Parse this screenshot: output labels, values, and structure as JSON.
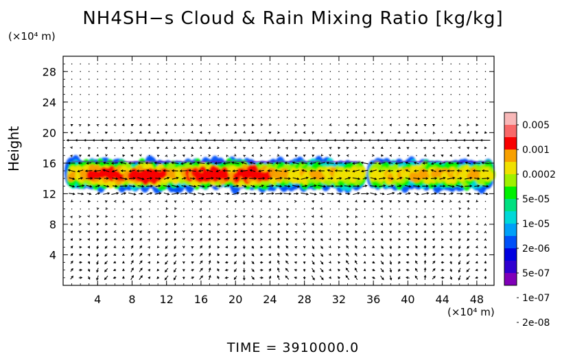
{
  "chart_data": {
    "type": "heatmap",
    "title": "NH4SH−s Cloud & Rain Mixing Ratio [kg/kg]",
    "ylabel": "Height",
    "y_unit_label": "(×10⁴ m)",
    "x_unit_label": "(×10⁴ m)",
    "footer": "TIME  =  3910000.0",
    "xlim": [
      0,
      50
    ],
    "ylim": [
      0,
      30
    ],
    "x_ticks": [
      4,
      8,
      12,
      16,
      20,
      24,
      28,
      32,
      36,
      40,
      44,
      48
    ],
    "y_ticks": [
      4,
      8,
      12,
      16,
      20,
      24,
      28
    ],
    "colorbar": {
      "labels": [
        "0.005",
        "0.001",
        "0.0002",
        "5e-05",
        "1e-05",
        "2e-06",
        "5e-07",
        "1e-07",
        "2e-08"
      ],
      "colors": [
        "#f8b8b8",
        "#f86868",
        "#f80000",
        "#f8a000",
        "#f0e000",
        "#a0f000",
        "#00f000",
        "#00e080",
        "#00d8d8",
        "#00a0f8",
        "#0050f8",
        "#0000e0",
        "#3000d0",
        "#8000b8"
      ]
    },
    "cloud_band": {
      "height_range": [
        12.5,
        16.5
      ],
      "x_segments": [
        [
          1,
          34.5
        ],
        [
          36,
          49.5
        ]
      ],
      "max_near_x": [
        5,
        10,
        17,
        22
      ]
    }
  }
}
